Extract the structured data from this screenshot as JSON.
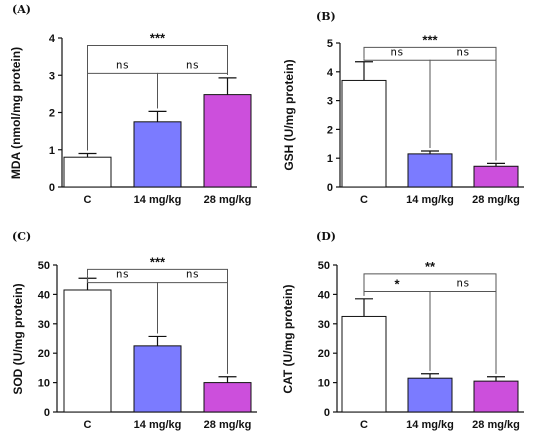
{
  "chart_data": [
    {
      "type": "bar",
      "panel": "(A)",
      "ylabel": "MDA (nmol/mg protein)",
      "ylim": [
        0,
        4
      ],
      "yticks": [
        0,
        1,
        2,
        3,
        4
      ],
      "categories": [
        "C",
        "14 mg/kg",
        "28 mg/kg"
      ],
      "values": [
        0.8,
        1.75,
        2.48
      ],
      "errors": [
        0.1,
        0.28,
        0.45
      ],
      "colors": [
        "#ffffff",
        "#7b7bff",
        "#cc4fdc"
      ],
      "significance": [
        {
          "from": 1,
          "to": 2,
          "label": "ns",
          "y": 3.05
        },
        {
          "from": 0,
          "to": 1,
          "label": "ns",
          "y": 3.05
        },
        {
          "from": 0,
          "to": 2,
          "label": "***",
          "y": 3.8
        }
      ]
    },
    {
      "type": "bar",
      "panel": "(B)",
      "ylabel": "GSH (U/mg protein)",
      "ylim": [
        0,
        5
      ],
      "yticks": [
        0,
        1,
        2,
        3,
        4,
        5
      ],
      "categories": [
        "C",
        "14 mg/kg",
        "28 mg/kg"
      ],
      "values": [
        3.7,
        1.15,
        0.72
      ],
      "errors": [
        0.65,
        0.1,
        0.1
      ],
      "colors": [
        "#ffffff",
        "#7b7bff",
        "#cc4fdc"
      ],
      "significance": [
        {
          "from": 0,
          "to": 1,
          "label": "ns",
          "y": 4.4
        },
        {
          "from": 1,
          "to": 2,
          "label": "ns",
          "y": 4.4
        },
        {
          "from": 0,
          "to": 2,
          "label": "***",
          "y": 4.85
        }
      ]
    },
    {
      "type": "bar",
      "panel": "(C)",
      "ylabel": "SOD (U/mg protein)",
      "ylim": [
        0,
        50
      ],
      "yticks": [
        0,
        10,
        20,
        30,
        40,
        50
      ],
      "categories": [
        "C",
        "14 mg/kg",
        "28 mg/kg"
      ],
      "values": [
        41.5,
        22.5,
        10
      ],
      "errors": [
        4,
        3.2,
        2
      ],
      "colors": [
        "#ffffff",
        "#7b7bff",
        "#cc4fdc"
      ],
      "significance": [
        {
          "from": 0,
          "to": 1,
          "label": "ns",
          "y": 44
        },
        {
          "from": 1,
          "to": 2,
          "label": "ns",
          "y": 44
        },
        {
          "from": 0,
          "to": 2,
          "label": "***",
          "y": 48.5
        }
      ]
    },
    {
      "type": "bar",
      "panel": "(D)",
      "ylabel": "CAT (U/mg protein)",
      "ylim": [
        0,
        50
      ],
      "yticks": [
        0,
        10,
        20,
        30,
        40,
        50
      ],
      "categories": [
        "C",
        "14 mg/kg",
        "28 mg/kg"
      ],
      "values": [
        32.5,
        11.5,
        10.5
      ],
      "errors": [
        6,
        1.5,
        1.5
      ],
      "colors": [
        "#ffffff",
        "#7b7bff",
        "#cc4fdc"
      ],
      "significance": [
        {
          "from": 0,
          "to": 1,
          "label": "*",
          "y": 41
        },
        {
          "from": 1,
          "to": 2,
          "label": "ns",
          "y": 41
        },
        {
          "from": 0,
          "to": 2,
          "label": "**",
          "y": 47
        }
      ]
    }
  ]
}
